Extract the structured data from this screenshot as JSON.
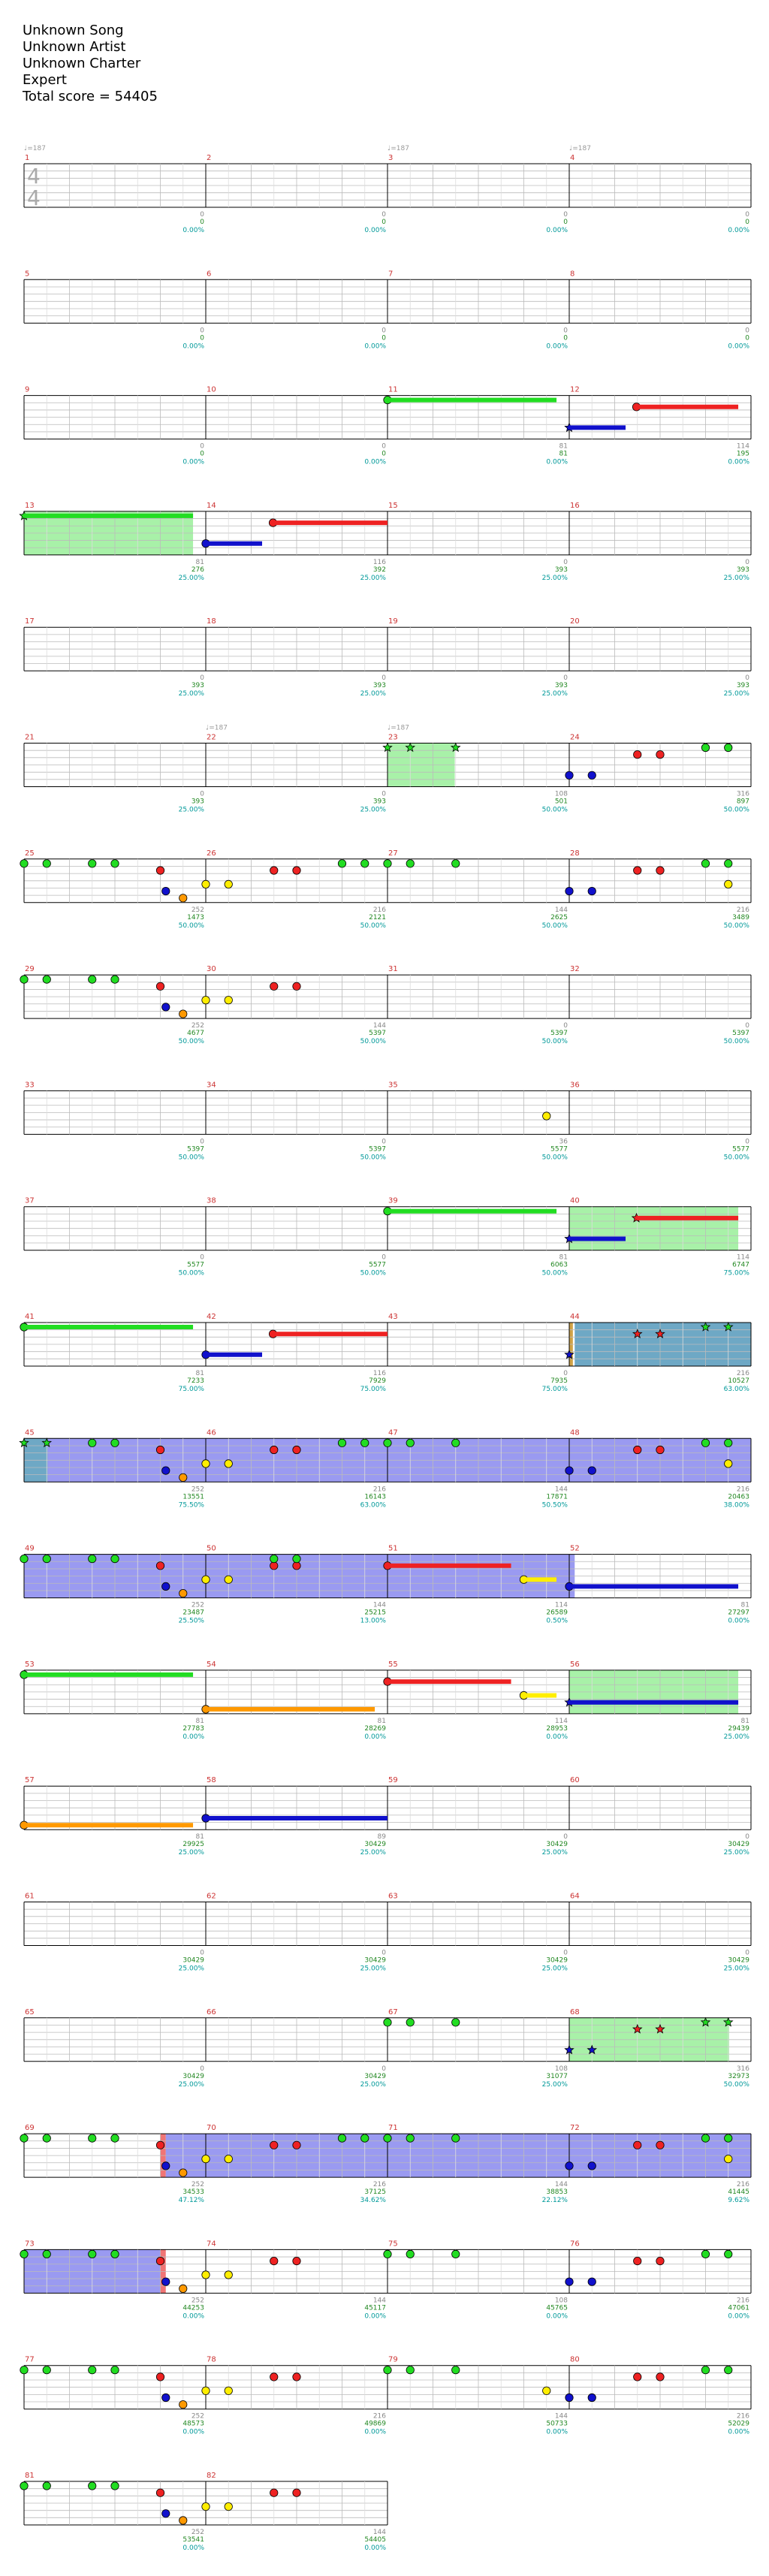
{
  "header": {
    "song": "Unknown Song",
    "artist": "Unknown Artist",
    "charter": "Unknown Charter",
    "difficulty": "Expert",
    "total_score": "Total score = 54405"
  },
  "colors": {
    "green": "#22dd22",
    "red": "#ee2222",
    "yellow": "#ffee00",
    "blue": "#1111cc",
    "orange": "#ff9900",
    "sp_fill": "#99ee99",
    "solo_fill": "#8888ee",
    "overlap_fill": "#5599bb",
    "measure_number": "#cc3333",
    "note_score": "#888888",
    "running_total": "#228822",
    "percent": "#009999",
    "tempo": "#999999"
  },
  "time_signature": {
    "top": "4",
    "bottom": "4"
  },
  "tempo_marks": [
    {
      "measure": 1,
      "label": "♩=187"
    },
    {
      "measure": 3,
      "label": "♩=187"
    },
    {
      "measure": 4,
      "label": "♩=187"
    },
    {
      "measure": 22,
      "label": "♩=187"
    },
    {
      "measure": 23,
      "label": "♩=187"
    }
  ],
  "rows": [
    {
      "measures": [
        1,
        2,
        3,
        4
      ],
      "scores": [
        "0",
        "0",
        "0",
        "0"
      ],
      "totals": [
        "0",
        "0",
        "0",
        "0"
      ],
      "percents": [
        "0.00%",
        "0.00%",
        "0.00%",
        "0.00%"
      ]
    },
    {
      "measures": [
        5,
        6,
        7,
        8
      ],
      "scores": [
        "0",
        "0",
        "0",
        "0"
      ],
      "totals": [
        "0",
        "0",
        "0",
        "0"
      ],
      "percents": [
        "0.00%",
        "0.00%",
        "0.00%",
        "0.00%"
      ]
    },
    {
      "measures": [
        9,
        10,
        11,
        12
      ],
      "scores": [
        "0",
        "0",
        "81",
        "114"
      ],
      "totals": [
        "0",
        "0",
        "81",
        "195"
      ],
      "percents": [
        "0.00%",
        "0.00%",
        "0.00%",
        "0.00%"
      ]
    },
    {
      "measures": [
        13,
        14,
        15,
        16
      ],
      "scores": [
        "81",
        "116",
        "0",
        "0"
      ],
      "totals": [
        "276",
        "392",
        "393",
        "393"
      ],
      "percents": [
        "25.00%",
        "25.00%",
        "25.00%",
        "25.00%"
      ]
    },
    {
      "measures": [
        17,
        18,
        19,
        20
      ],
      "scores": [
        "0",
        "0",
        "0",
        "0"
      ],
      "totals": [
        "393",
        "393",
        "393",
        "393"
      ],
      "percents": [
        "25.00%",
        "25.00%",
        "25.00%",
        "25.00%"
      ]
    },
    {
      "measures": [
        21,
        22,
        23,
        24
      ],
      "scores": [
        "0",
        "0",
        "108",
        "316"
      ],
      "totals": [
        "393",
        "393",
        "501",
        "897"
      ],
      "percents": [
        "25.00%",
        "25.00%",
        "50.00%",
        "50.00%"
      ]
    },
    {
      "measures": [
        25,
        26,
        27,
        28
      ],
      "scores": [
        "252",
        "216",
        "144",
        "216"
      ],
      "totals": [
        "1473",
        "2121",
        "2625",
        "3489"
      ],
      "percents": [
        "50.00%",
        "50.00%",
        "50.00%",
        "50.00%"
      ]
    },
    {
      "measures": [
        29,
        30,
        31,
        32
      ],
      "scores": [
        "252",
        "144",
        "0",
        "0"
      ],
      "totals": [
        "4677",
        "5397",
        "5397",
        "5397"
      ],
      "percents": [
        "50.00%",
        "50.00%",
        "50.00%",
        "50.00%"
      ]
    },
    {
      "measures": [
        33,
        34,
        35,
        36
      ],
      "scores": [
        "0",
        "0",
        "36",
        "0"
      ],
      "totals": [
        "5397",
        "5397",
        "5577",
        "5577"
      ],
      "percents": [
        "50.00%",
        "50.00%",
        "50.00%",
        "50.00%"
      ]
    },
    {
      "measures": [
        37,
        38,
        39,
        40
      ],
      "scores": [
        "0",
        "0",
        "81",
        "114"
      ],
      "totals": [
        "5577",
        "5577",
        "6063",
        "6747"
      ],
      "percents": [
        "50.00%",
        "50.00%",
        "50.00%",
        "75.00%"
      ]
    },
    {
      "measures": [
        41,
        42,
        43,
        44
      ],
      "scores": [
        "81",
        "116",
        "0",
        "216"
      ],
      "totals": [
        "7233",
        "7929",
        "7935",
        "10527"
      ],
      "percents": [
        "75.00%",
        "75.00%",
        "75.00%",
        "63.00%"
      ]
    },
    {
      "measures": [
        45,
        46,
        47,
        48
      ],
      "scores": [
        "252",
        "216",
        "144",
        "216"
      ],
      "totals": [
        "13551",
        "16143",
        "17871",
        "20463"
      ],
      "percents": [
        "75.50%",
        "63.00%",
        "50.50%",
        "38.00%"
      ]
    },
    {
      "measures": [
        49,
        50,
        51,
        52
      ],
      "scores": [
        "252",
        "144",
        "114",
        "81"
      ],
      "totals": [
        "23487",
        "25215",
        "26589",
        "27297"
      ],
      "percents": [
        "25.50%",
        "13.00%",
        "0.50%",
        "0.00%"
      ]
    },
    {
      "measures": [
        53,
        54,
        55,
        56
      ],
      "scores": [
        "81",
        "81",
        "114",
        "81"
      ],
      "totals": [
        "27783",
        "28269",
        "28953",
        "29439"
      ],
      "percents": [
        "0.00%",
        "0.00%",
        "0.00%",
        "25.00%"
      ]
    },
    {
      "measures": [
        57,
        58,
        59,
        60
      ],
      "scores": [
        "81",
        "89",
        "0",
        "0"
      ],
      "totals": [
        "29925",
        "30429",
        "30429",
        "30429"
      ],
      "percents": [
        "25.00%",
        "25.00%",
        "25.00%",
        "25.00%"
      ]
    },
    {
      "measures": [
        61,
        62,
        63,
        64
      ],
      "scores": [
        "0",
        "0",
        "0",
        "0"
      ],
      "totals": [
        "30429",
        "30429",
        "30429",
        "30429"
      ],
      "percents": [
        "25.00%",
        "25.00%",
        "25.00%",
        "25.00%"
      ]
    },
    {
      "measures": [
        65,
        66,
        67,
        68
      ],
      "scores": [
        "0",
        "0",
        "108",
        "316"
      ],
      "totals": [
        "30429",
        "30429",
        "31077",
        "32973"
      ],
      "percents": [
        "25.00%",
        "25.00%",
        "25.00%",
        "50.00%"
      ]
    },
    {
      "measures": [
        69,
        70,
        71,
        72
      ],
      "scores": [
        "252",
        "216",
        "144",
        "216"
      ],
      "totals": [
        "34533",
        "37125",
        "38853",
        "41445"
      ],
      "percents": [
        "47.12%",
        "34.62%",
        "22.12%",
        "9.62%"
      ]
    },
    {
      "measures": [
        73,
        74,
        75,
        76
      ],
      "scores": [
        "252",
        "144",
        "108",
        "216"
      ],
      "totals": [
        "44253",
        "45117",
        "45765",
        "47061"
      ],
      "percents": [
        "0.00%",
        "0.00%",
        "0.00%",
        "0.00%"
      ]
    },
    {
      "measures": [
        77,
        78,
        79,
        80
      ],
      "scores": [
        "252",
        "216",
        "144",
        "216"
      ],
      "totals": [
        "48573",
        "49869",
        "50733",
        "52029"
      ],
      "percents": [
        "0.00%",
        "0.00%",
        "0.00%",
        "0.00%"
      ]
    },
    {
      "measures": [
        81,
        82
      ],
      "scores": [
        "252",
        "144"
      ],
      "totals": [
        "53541",
        "54405"
      ],
      "percents": [
        "0.00%",
        "0.00%"
      ]
    }
  ]
}
